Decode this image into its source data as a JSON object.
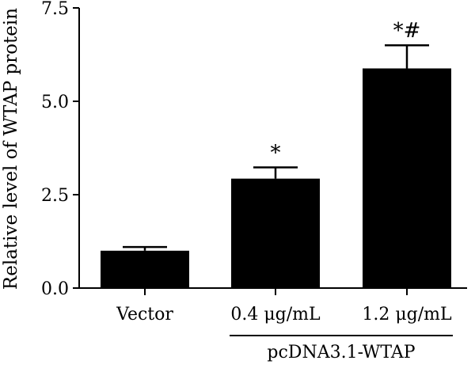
{
  "chart_data": {
    "type": "bar",
    "categories": [
      "Vector",
      "0.4 μg/mL",
      "1.2 μg/mL"
    ],
    "values": [
      1.0,
      2.93,
      5.88
    ],
    "errors": [
      0.1,
      0.3,
      0.62
    ],
    "annotations": [
      "",
      "*",
      "*#"
    ],
    "title": "",
    "xlabel": "",
    "ylabel": "Relative level of WTAP protein",
    "ylim": [
      0,
      7.5
    ],
    "yticks": [
      0.0,
      2.5,
      5.0,
      7.5
    ],
    "ytick_labels": [
      "0.0",
      "2.5",
      "5.0",
      "7.5"
    ],
    "group_label": "pcDNA3.1-WTAP",
    "group_categories": [
      1,
      2
    ],
    "bar_color": "#000000",
    "grid": false,
    "legend": "none"
  }
}
